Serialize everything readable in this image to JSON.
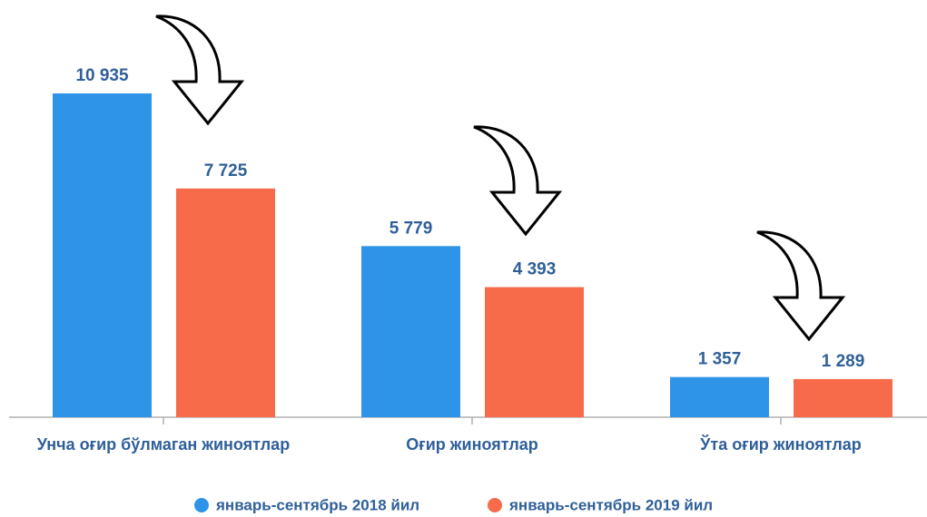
{
  "chart_data": {
    "type": "bar",
    "categories": [
      "Унча оғир бўлмаган жиноятлар",
      "Оғир жиноятлар",
      "Ўта оғир жиноятлар"
    ],
    "series": [
      {
        "name": "январь-сентябрь 2018 йил",
        "color": "#2e94e8",
        "values": [
          10935,
          5779,
          1357
        ],
        "value_labels": [
          "10 935",
          "5 779",
          "1 357"
        ]
      },
      {
        "name": "январь-сентябрь 2019 йил",
        "color": "#f76b4b",
        "values": [
          7725,
          4393,
          1289
        ],
        "value_labels": [
          "7 725",
          "4 393",
          "1 289"
        ]
      }
    ]
  }
}
